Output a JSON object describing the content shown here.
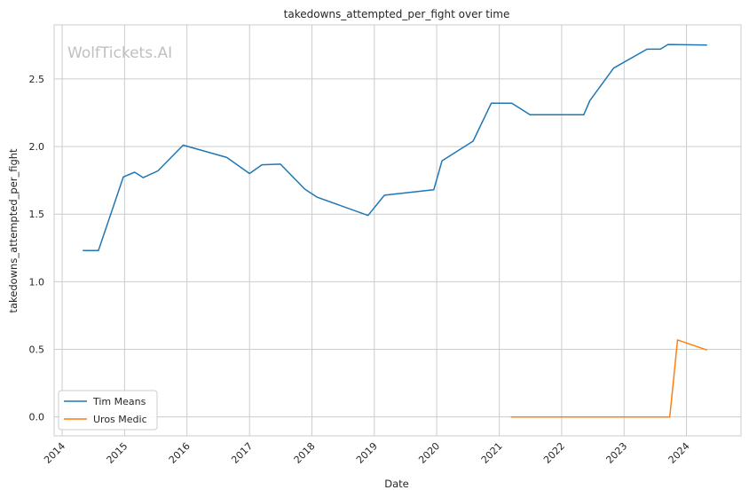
{
  "chart_data": {
    "type": "line",
    "title": "takedowns_attempted_per_fight over time",
    "xlabel": "Date",
    "ylabel": "takedowns_attempted_per_fight",
    "watermark": "WolfTickets.AI",
    "x_axis": "date",
    "xlim": [
      "2013-11-15",
      "2024-11-15"
    ],
    "ylim": [
      -0.14,
      2.9
    ],
    "x_ticks": [
      "2014",
      "2015",
      "2016",
      "2017",
      "2018",
      "2019",
      "2020",
      "2021",
      "2022",
      "2023",
      "2024"
    ],
    "y_ticks": [
      "0.0",
      "0.5",
      "1.0",
      "1.5",
      "2.0",
      "2.5"
    ],
    "grid": true,
    "legend_position": "lower-left",
    "series": [
      {
        "name": "Tim Means",
        "color": "#1f77b4",
        "points": [
          [
            "2014-05-01",
            1.23
          ],
          [
            "2014-08-01",
            1.23
          ],
          [
            "2014-12-25",
            1.775
          ],
          [
            "2015-03-01",
            1.81
          ],
          [
            "2015-04-20",
            1.77
          ],
          [
            "2015-07-15",
            1.82
          ],
          [
            "2015-12-10",
            2.01
          ],
          [
            "2016-08-20",
            1.92
          ],
          [
            "2017-01-01",
            1.8
          ],
          [
            "2017-03-15",
            1.865
          ],
          [
            "2017-07-01",
            1.87
          ],
          [
            "2017-11-20",
            1.685
          ],
          [
            "2018-02-01",
            1.625
          ],
          [
            "2018-11-25",
            1.49
          ],
          [
            "2019-03-01",
            1.64
          ],
          [
            "2019-12-15",
            1.68
          ],
          [
            "2020-02-01",
            1.895
          ],
          [
            "2020-08-01",
            2.04
          ],
          [
            "2020-11-15",
            2.32
          ],
          [
            "2021-03-15",
            2.32
          ],
          [
            "2021-06-30",
            2.235
          ],
          [
            "2022-05-10",
            2.235
          ],
          [
            "2022-06-15",
            2.34
          ],
          [
            "2022-11-01",
            2.58
          ],
          [
            "2023-05-15",
            2.72
          ],
          [
            "2023-08-01",
            2.72
          ],
          [
            "2023-09-15",
            2.755
          ],
          [
            "2024-04-30",
            2.75
          ]
        ]
      },
      {
        "name": "Uros Medic",
        "color": "#ff7f0e",
        "points": [
          [
            "2021-03-10",
            0.0
          ],
          [
            "2023-09-25",
            0.0
          ],
          [
            "2023-11-10",
            0.57
          ],
          [
            "2024-04-30",
            0.495
          ]
        ]
      }
    ]
  }
}
